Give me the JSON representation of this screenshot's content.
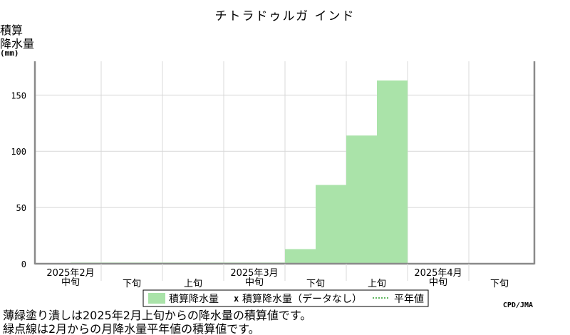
{
  "chart_data": {
    "type": "area",
    "title": "チトラドゥルガ インド",
    "ylabel_lines": [
      "積算",
      "降水量"
    ],
    "yunit": "(mm)",
    "ylim": [
      0,
      180
    ],
    "yticks": [
      0,
      50,
      100,
      150
    ],
    "grid": true,
    "periods": [
      {
        "month": "2025年2月",
        "dekad": "中旬"
      },
      {
        "month": "",
        "dekad": "下旬"
      },
      {
        "month": "",
        "dekad": "上旬"
      },
      {
        "month": "2025年3月",
        "dekad": "中旬"
      },
      {
        "month": "",
        "dekad": "下旬"
      },
      {
        "month": "",
        "dekad": "上旬"
      },
      {
        "month": "2025年4月",
        "dekad": "中旬"
      },
      {
        "month": "",
        "dekad": "下旬"
      }
    ],
    "series": [
      {
        "name": "積算降水量",
        "color": "#aae3a9",
        "step_values": [
          0,
          1,
          1,
          1,
          1,
          1,
          1,
          1,
          13,
          70,
          114,
          163
        ]
      }
    ],
    "legend": {
      "placement": "bottom-center",
      "entries": [
        "積算降水量",
        "積算降水量（データなし）",
        "平年値"
      ],
      "missing_marker": "x"
    },
    "source": "CPD/JMA"
  },
  "notes": [
    "薄緑塗り潰しは2025年2月上旬からの降水量の積算値です。",
    "緑点線は2月からの月降水量平年値の積算値です。"
  ]
}
